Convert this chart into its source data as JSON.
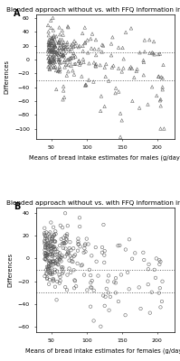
{
  "title": "Blended approach without vs. with FFQ information included",
  "panel_A_label": "A",
  "panel_B_label": "B",
  "xlabel_A": "Means of bread intake estimates for males (g/day)",
  "xlabel_B": "Means of bread intake estimates for females (g/day)",
  "ylabel": "Differences",
  "xlim_A": [
    28,
    225
  ],
  "xlim_B": [
    28,
    225
  ],
  "ylim_A": [
    -115,
    65
  ],
  "ylim_B": [
    -65,
    45
  ],
  "xticks_A": [
    50,
    100,
    150,
    200
  ],
  "xticks_B": [
    50,
    100,
    150,
    200
  ],
  "yticks_A": [
    -100,
    -80,
    -60,
    -40,
    -20,
    0,
    20,
    40,
    60
  ],
  "yticks_B": [
    -60,
    -40,
    -20,
    0,
    20,
    40
  ],
  "hline_A_upper": 10,
  "hline_A_lower": -30,
  "hline_B_upper": -10,
  "hline_B_lower": -30,
  "marker_A": "^",
  "marker_B": "o",
  "marker_facecolor": "none",
  "marker_edgecolor": "#555555",
  "marker_size": 2.5,
  "hline_color": "#666666",
  "hline_style": "dotted",
  "background_color": "#ffffff",
  "title_fontsize": 5.2,
  "label_fontsize": 4.8,
  "tick_fontsize": 4.5,
  "panel_label_fontsize": 7,
  "seed_A": 42,
  "n_points_A": 280,
  "seed_B": 7,
  "n_points_B": 280
}
